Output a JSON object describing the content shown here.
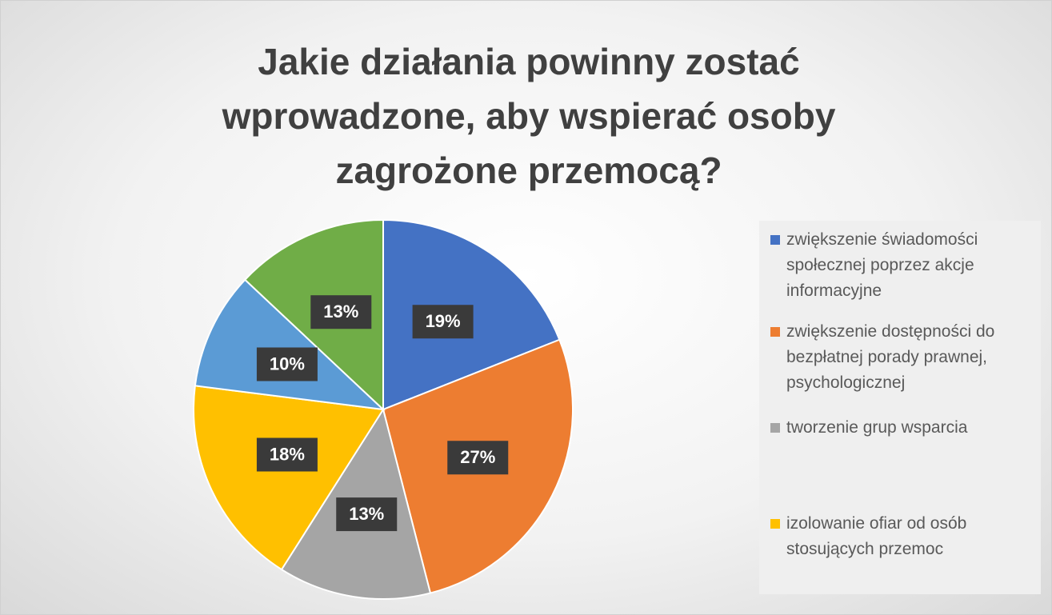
{
  "chart_data": {
    "type": "pie",
    "title": "Jakie działania powinny zostać wprowadzone, aby wspierać osoby zagrożone przemocą?",
    "categories": [
      "zwiększenie świadomości społecznej poprzez akcje informacyjne",
      "zwiększenie dostępności do bezpłatnej porady prawnej, psychologicznej",
      "tworzenie grup wsparcia",
      "izolowanie ofiar od osób stosujących przemoc",
      null,
      null
    ],
    "values": [
      19,
      27,
      13,
      18,
      10,
      13
    ],
    "value_labels": [
      "19%",
      "27%",
      "13%",
      "18%",
      "10%",
      "13%"
    ],
    "colors": [
      "#4472c4",
      "#ed7d31",
      "#a5a5a5",
      "#ffc000",
      "#5b9bd5",
      "#70ad47"
    ],
    "legend": "right"
  }
}
